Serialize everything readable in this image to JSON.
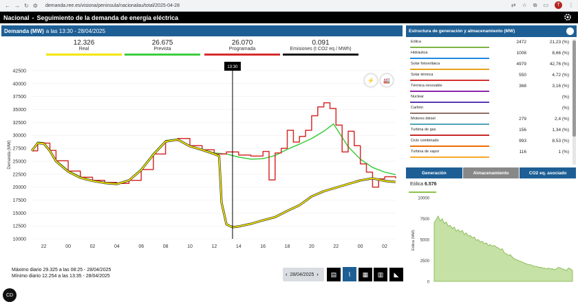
{
  "browser": {
    "url": "demanda.ree.es/visiona/peninsula/nacionalau/total/2025-04-28",
    "avatar_letter": "T"
  },
  "topbar": {
    "region": "Nacional",
    "separator": "-",
    "title": "Seguimiento de la demanda de energía eléctrica"
  },
  "demand_header": {
    "label": "Demanda (MW)",
    "time": "a las 13:30 - 28/04/2025"
  },
  "legend": [
    {
      "value": "12.326",
      "label": "Real",
      "color": "#f2e600"
    },
    {
      "value": "26.675",
      "label": "Prevista",
      "color": "#3ccc3c"
    },
    {
      "value": "26.070",
      "label": "Programada",
      "color": "#d62b2b"
    },
    {
      "value": "0.091",
      "label": "Emisiones (t CO2 eq / MWh)",
      "color": "#111111"
    }
  ],
  "cursor_label": "13:30",
  "stats": {
    "max": "Máximo diario 29.325 a las 08:25 - 28/04/2025",
    "min": "Mínimo diario 12.254 a las 13:35 - 28/04/2025"
  },
  "date_selector": {
    "date": "28/04/2025",
    "arrow_left": "‹",
    "arrow_right": "›"
  },
  "generation_header": "Estructura de generación y almacenamiento (MW)",
  "generation": [
    {
      "name": "Eólica",
      "mw": "2472",
      "pct": "21,23 (%)",
      "color": "#7cb342"
    },
    {
      "name": "Hidráulica",
      "mw": "1008",
      "pct": "8,66 (%)",
      "color": "#1e88e5"
    },
    {
      "name": "Solar fotovoltaica",
      "mw": "4979",
      "pct": "42,76 (%)",
      "color": "#e6a117"
    },
    {
      "name": "Solar térmica",
      "mw": "550",
      "pct": "4,72 (%)",
      "color": "#d32f2f"
    },
    {
      "name": "Térmica renovable",
      "mw": "368",
      "pct": "3,16 (%)",
      "color": "#8e24aa"
    },
    {
      "name": "Nuclear",
      "mw": "",
      "pct": "(%)",
      "color": "#5e35b1"
    },
    {
      "name": "Carbón",
      "mw": "",
      "pct": "(%)",
      "color": "#8d6e63"
    },
    {
      "name": "Motores diésel",
      "mw": "279",
      "pct": "2,4 (%)",
      "color": "#4fa3b8"
    },
    {
      "name": "Turbina de gas",
      "mw": "156",
      "pct": "1,34 (%)",
      "color": "#c62828"
    },
    {
      "name": "Ciclo combinado",
      "mw": "993",
      "pct": "8,53 (%)",
      "color": "#ef6c00"
    },
    {
      "name": "Turbina de vapor",
      "mw": "116",
      "pct": "1 (%)",
      "color": "#f9a825"
    }
  ],
  "tabs": [
    "Generación",
    "Almacenamiento",
    "CO2 eq. asociado"
  ],
  "mini_chart": {
    "label": "Eólica",
    "value": "6.576",
    "ylabel": "Eólica (MW)",
    "yticks": [
      "10000",
      "7500",
      "5000",
      "2500",
      "0"
    ]
  },
  "chart_data": {
    "type": "line",
    "ylabel": "Demanda (MW)",
    "ylim": [
      10000,
      42500
    ],
    "yticks": [
      "42500",
      "40000",
      "37500",
      "35000",
      "32500",
      "30000",
      "27500",
      "25000",
      "22500",
      "20000",
      "17500",
      "15000",
      "12500",
      "10000"
    ],
    "xticks": [
      "22",
      "00",
      "02",
      "04",
      "06",
      "08",
      "10",
      "12",
      "14",
      "16",
      "18",
      "20",
      "22",
      "00",
      "02"
    ],
    "x_hours": [
      -2,
      0,
      2,
      4,
      6,
      8,
      10,
      12,
      14,
      16,
      18,
      20,
      22,
      24,
      26
    ],
    "series": [
      {
        "name": "Real",
        "color": "#f2e600",
        "x": [
          -3,
          -2.5,
          -2,
          -1.5,
          -1,
          0,
          1,
          2,
          3,
          4,
          5,
          6,
          7,
          8,
          9,
          10,
          11,
          12,
          12.4,
          12.6,
          13,
          13.5,
          14,
          15,
          16,
          17,
          18,
          19,
          20,
          21,
          22,
          23,
          24,
          25,
          26,
          26.9
        ],
        "y": [
          27000,
          28500,
          28400,
          27000,
          25000,
          23000,
          21800,
          21200,
          20800,
          20600,
          21300,
          23300,
          26300,
          28800,
          29200,
          27900,
          27200,
          26400,
          26000,
          17000,
          12800,
          12254,
          12400,
          12900,
          13600,
          14200,
          15400,
          16500,
          18200,
          19200,
          19900,
          20600,
          21300,
          21700,
          21200,
          21000
        ]
      },
      {
        "name": "Prevista",
        "color": "#3ccc3c",
        "x": [
          -3,
          -2.5,
          -2,
          -1.5,
          -1,
          0,
          1,
          2,
          3,
          4,
          5,
          6,
          7,
          8,
          9,
          10,
          11,
          12,
          13,
          14,
          15,
          16,
          17,
          18,
          19,
          20,
          21,
          21.8,
          23,
          24,
          25,
          26,
          26.9
        ],
        "y": [
          27000,
          28700,
          28600,
          27200,
          25200,
          23200,
          22000,
          21300,
          20900,
          20700,
          21400,
          23500,
          26500,
          29000,
          29300,
          28000,
          27300,
          26600,
          26400,
          25800,
          25400,
          25500,
          26100,
          27300,
          28300,
          29400,
          30800,
          32200,
          27800,
          25400,
          23800,
          22900,
          22400
        ]
      },
      {
        "name": "Programada",
        "color": "#d62b2b",
        "x": [
          -3,
          -2.5,
          -2,
          -1.5,
          -1,
          0,
          1,
          2,
          3,
          4,
          5,
          6,
          7,
          8,
          9,
          10,
          11,
          12,
          13,
          14,
          15,
          16,
          16.5,
          17,
          17.5,
          18,
          18.5,
          19,
          19.5,
          20,
          20.5,
          21,
          21.5,
          22,
          22.5,
          23,
          23.5,
          24,
          24.5,
          25,
          25.5,
          26,
          26.9
        ],
        "y": [
          27000,
          28600,
          28500,
          27100,
          25100,
          23100,
          21900,
          21300,
          20900,
          20700,
          21300,
          23400,
          26400,
          29000,
          29400,
          28000,
          27200,
          26400,
          26800,
          26200,
          26000,
          26900,
          21400,
          26600,
          27500,
          31000,
          28700,
          29800,
          31000,
          33800,
          35500,
          36300,
          35200,
          32000,
          26800,
          30800,
          28000,
          24500,
          22900,
          20000,
          21600,
          22000,
          21700
        ]
      }
    ],
    "cursor_x": 13.5
  }
}
